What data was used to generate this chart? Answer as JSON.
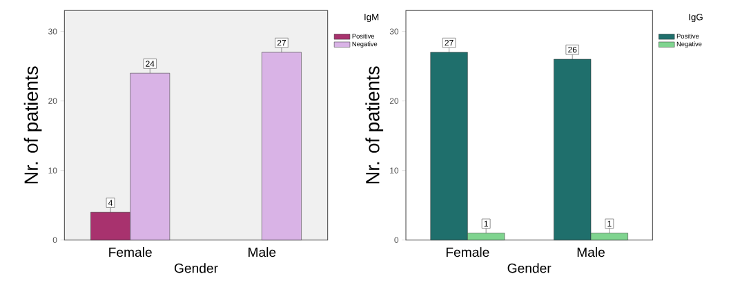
{
  "chart_data": [
    {
      "type": "bar",
      "categories": [
        "Female",
        "Male"
      ],
      "xlabel": "Gender",
      "ylabel": "Nr. of patients",
      "legend_title": "IgM",
      "legend": "top right",
      "ylim": [
        0,
        33
      ],
      "yticks": [
        0,
        10,
        20,
        30
      ],
      "data_labels": true,
      "series": [
        {
          "name": "Positive",
          "color": "#a8326e",
          "values": [
            4,
            null
          ]
        },
        {
          "name": "Negative",
          "color": "#d9b3e6",
          "values": [
            24,
            27
          ]
        }
      ]
    },
    {
      "type": "bar",
      "categories": [
        "Female",
        "Male"
      ],
      "xlabel": "Gender",
      "ylabel": "Nr. of patients",
      "legend_title": "IgG",
      "legend": "top right",
      "ylim": [
        0,
        33
      ],
      "yticks": [
        0,
        10,
        20,
        30
      ],
      "data_labels": true,
      "series": [
        {
          "name": "Positive",
          "color": "#1f6f6c",
          "values": [
            27,
            26
          ]
        },
        {
          "name": "Negative",
          "color": "#7fd48f",
          "values": [
            1,
            1
          ]
        }
      ]
    }
  ]
}
